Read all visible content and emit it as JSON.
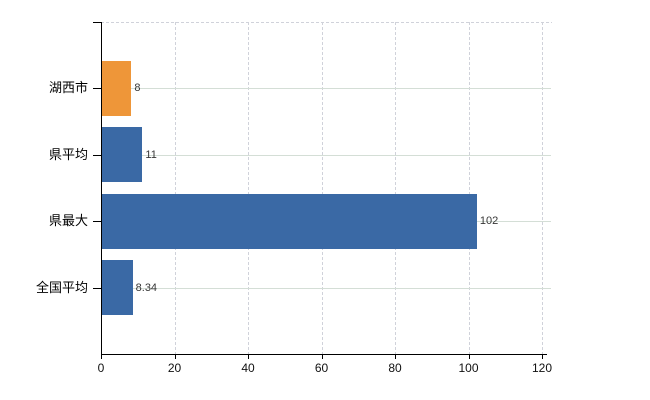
{
  "chart_data": {
    "type": "bar",
    "orientation": "horizontal",
    "title": "",
    "xlabel": "",
    "ylabel": "",
    "categories": [
      "湖西市",
      "県平均",
      "県最大",
      "全国平均"
    ],
    "values": [
      8,
      11,
      102,
      8.34
    ],
    "value_labels": [
      "8",
      "11",
      "102",
      "8.34"
    ],
    "bar_colors": [
      "#ee9639",
      "#3a69a5",
      "#3a69a5",
      "#3a69a5"
    ],
    "xlim": [
      0,
      120
    ],
    "xticks": [
      0,
      20,
      40,
      60,
      80,
      100,
      120
    ],
    "xtick_labels": [
      "0",
      "20",
      "40",
      "60",
      "80",
      "100",
      "120"
    ],
    "legend": "none",
    "grid": {
      "vertical": "dashed",
      "horizontal": "solid",
      "top_boundary": "dashed"
    }
  },
  "colors": {
    "background": "#ffffff",
    "axis": "#000000",
    "grid_vertical": "#d0d2da",
    "grid_horizontal": "#d4ded6",
    "bar_orange": "#ee9639",
    "bar_blue": "#3a69a5",
    "category_text": "#000000",
    "value_text": "#363636",
    "tick_text": "#111111"
  }
}
